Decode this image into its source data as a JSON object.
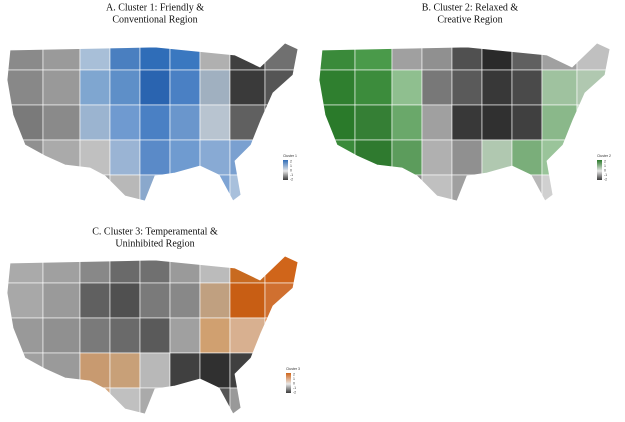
{
  "panels": [
    {
      "title_lines": [
        "A. Cluster 1: Friendly &",
        "Conventional Region"
      ],
      "legend": {
        "title": "Cluster 1",
        "labels": [
          "2",
          "1",
          "0",
          "-1",
          "-2"
        ],
        "gradient": [
          "#2f6db8",
          "#3a3a3a"
        ]
      },
      "colors": [
        "#8a8a8a",
        "#9a9a9a",
        "#a8bfd8",
        "#4a7fc0",
        "#2f6db8",
        "#3a78c0",
        "#b0b0b0",
        "#404040",
        "#707070",
        "#888888",
        "#999999",
        "#7fa6d0",
        "#5e8fc8",
        "#2a64b0",
        "#4a80c4",
        "#a0b0c0",
        "#3a3a3a",
        "#555555",
        "#7a7a7a",
        "#8a8a8a",
        "#9bb4d0",
        "#6f9ad0",
        "#4a80c4",
        "#6a96cc",
        "#b8c4d0",
        "#606060",
        "#444444",
        "#909090",
        "#aaaaaa",
        "#c0c0c0",
        "#9ab4d4",
        "#5a8ac8",
        "#6f9bd0",
        "#88aad4",
        "#7aa0d0",
        "#c0c8d0",
        "#999999",
        "#9a9a9a",
        "#a0a0a0",
        "#b8b8b8",
        "#8aa8cc",
        "#6a94cc",
        "#7ea4d4",
        "#a8c0dc",
        "#dddddd"
      ]
    },
    {
      "title_lines": [
        "B. Cluster 2: Relaxed &",
        "Creative Region"
      ],
      "legend": {
        "title": "Cluster 2",
        "labels": [
          "2",
          "1",
          "0",
          "-1",
          "-2"
        ],
        "gradient": [
          "#2a7a2a",
          "#3a3a3a"
        ]
      },
      "colors": [
        "#3a8a3a",
        "#4a9a4a",
        "#a0a0a0",
        "#909090",
        "#505050",
        "#2a2a2a",
        "#606060",
        "#a0a0a0",
        "#c0c0c0",
        "#2f7f2f",
        "#3c8c3c",
        "#8fbf8f",
        "#787878",
        "#5a5a5a",
        "#383838",
        "#4a4a4a",
        "#9fc29f",
        "#b0c8b0",
        "#2a7a2a",
        "#357f35",
        "#6aa86a",
        "#a0a0a0",
        "#383838",
        "#303030",
        "#404040",
        "#8ab88a",
        "#c8d8c8",
        "#3a8a3a",
        "#2f7a2f",
        "#5c9c5c",
        "#b0b0b0",
        "#909090",
        "#b0c8b0",
        "#7aae7a",
        "#9ac49a",
        "#dddddd",
        "#c0c0c0",
        "#2a722a",
        "#8a8a8a",
        "#c0c0c0",
        "#a0a0a0",
        "#c8c8c8",
        "#b8b8b8",
        "#d0d0d0",
        "#e0e0e0"
      ]
    },
    {
      "title_lines": [
        "C. Cluster 3: Temperamental &",
        "Uninhibited Region"
      ],
      "legend": {
        "title": "Cluster 3",
        "labels": [
          "2",
          "1",
          "0",
          "-1",
          "-2"
        ],
        "gradient": [
          "#d0651a",
          "#3a3a3a"
        ]
      },
      "colors": [
        "#aaaaaa",
        "#a0a0a0",
        "#888888",
        "#6a6a6a",
        "#707070",
        "#9a9a9a",
        "#bbbbbb",
        "#c86a20",
        "#d0651a",
        "#a8a8a8",
        "#9a9a9a",
        "#606060",
        "#505050",
        "#7a7a7a",
        "#888888",
        "#c0a080",
        "#c85e14",
        "#d07030",
        "#999999",
        "#909090",
        "#7a7a7a",
        "#6a6a6a",
        "#5a5a5a",
        "#a0a0a0",
        "#d0a070",
        "#d8b090",
        "#e08040",
        "#a0a0a0",
        "#9a9a9a",
        "#c89a70",
        "#c8a078",
        "#b8b8b8",
        "#404040",
        "#303030",
        "#404040",
        "#bbbbbb",
        "#aaaaaa",
        "#c8a07a",
        "#d4a880",
        "#c0c0c0",
        "#aaaaaa",
        "#707070",
        "#555555",
        "#999999",
        "#dddddd"
      ]
    }
  ]
}
